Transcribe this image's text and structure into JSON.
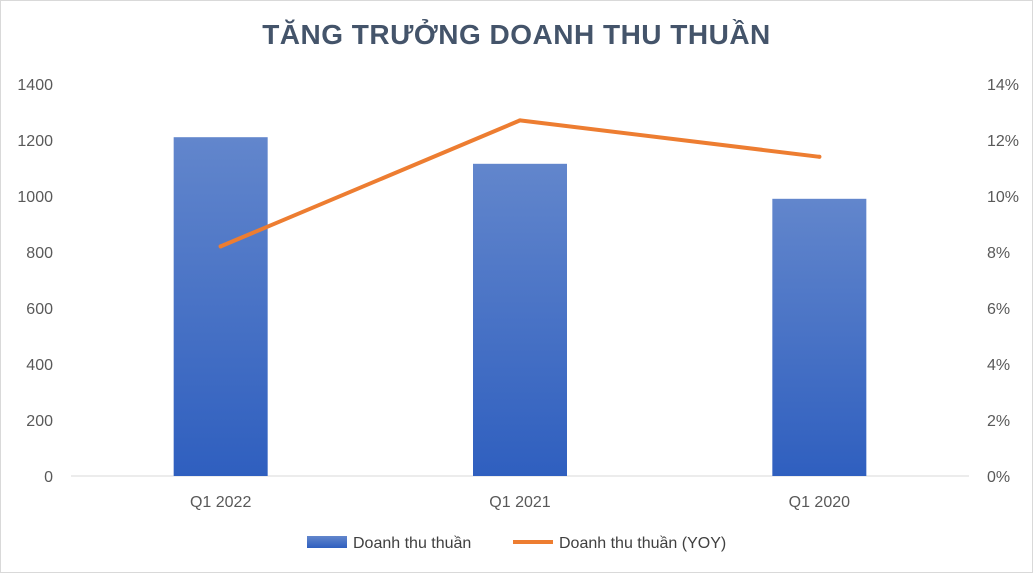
{
  "chart_data": {
    "type": "bar",
    "title": "TĂNG TRƯỞNG DOANH THU THUẦN",
    "categories": [
      "Q1 2022",
      "Q1 2021",
      "Q1 2020"
    ],
    "series": [
      {
        "name": "Doanh thu thuần",
        "type": "bar",
        "axis": "left",
        "values": [
          1210,
          1115,
          990
        ],
        "color": "#4472c4"
      },
      {
        "name": "Doanh thu thuần (YOY)",
        "type": "line",
        "axis": "right",
        "values": [
          8.2,
          12.7,
          11.4
        ],
        "color": "#ed7d31"
      }
    ],
    "y_left": {
      "min": 0,
      "max": 1400,
      "ticks": [
        "0",
        "200",
        "400",
        "600",
        "800",
        "1000",
        "1200",
        "1400"
      ]
    },
    "y_right": {
      "min": 0,
      "max": 14,
      "ticks": [
        "0%",
        "2%",
        "4%",
        "6%",
        "8%",
        "10%",
        "12%",
        "14%"
      ]
    },
    "legend": "bottom",
    "grid": false
  }
}
